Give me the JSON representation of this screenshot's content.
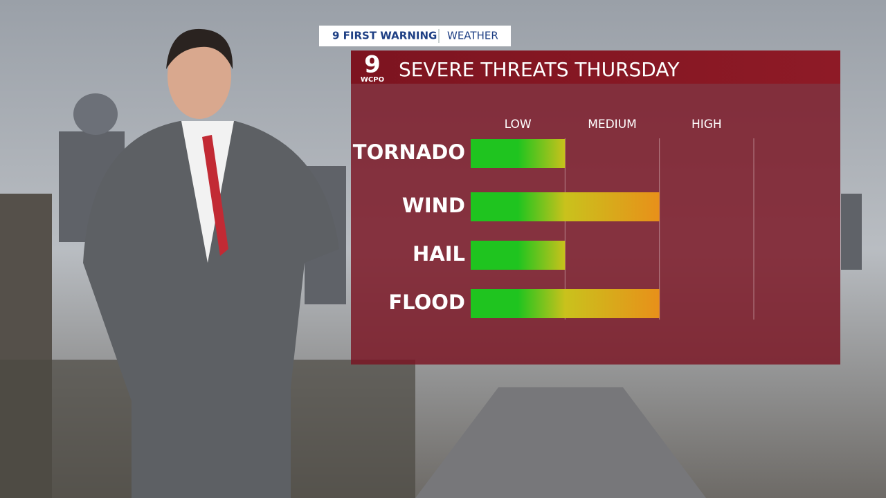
{
  "header": {
    "brand": "9 FIRST WARNING",
    "section": "WEATHER",
    "logo": "9",
    "station": "WCPO"
  },
  "chart_data": {
    "type": "bar",
    "orientation": "horizontal",
    "title": "SEVERE THREATS THURSDAY",
    "categories": [
      "TORNADO",
      "WIND",
      "HAIL",
      "FLOOD"
    ],
    "values": [
      1,
      2,
      1,
      2
    ],
    "xlim": [
      0,
      3
    ],
    "xticks": [
      {
        "value": 1,
        "label": "LOW"
      },
      {
        "value": 2,
        "label": "MEDIUM"
      },
      {
        "value": 3,
        "label": "HIGH"
      }
    ],
    "colors": [
      "#1fc41f",
      "#c9c21c",
      "#e8901a"
    ],
    "grid": true
  }
}
